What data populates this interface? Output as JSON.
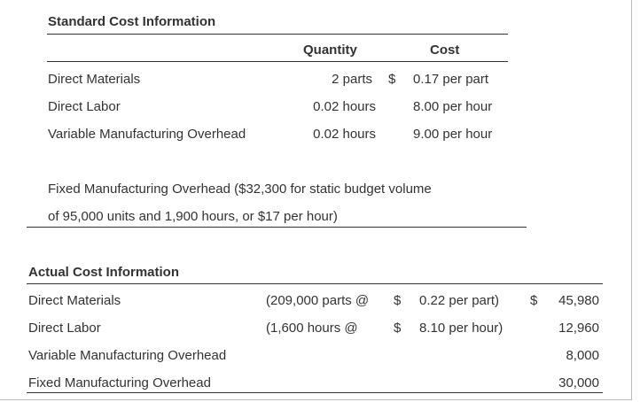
{
  "standard": {
    "title": "Standard Cost Information",
    "col_quantity": "Quantity",
    "col_cost": "Cost",
    "rows": [
      {
        "label": "Direct Materials",
        "quantity": "2 parts",
        "dollar": "$",
        "cost": "0.17 per part"
      },
      {
        "label": "Direct Labor",
        "quantity": "0.02 hours",
        "dollar": "",
        "cost": "8.00 per hour"
      },
      {
        "label": "Variable Manufacturing Overhead",
        "quantity": "0.02 hours",
        "dollar": "",
        "cost": "9.00 per hour"
      }
    ],
    "fixed_line1": "Fixed Manufacturing Overhead ($32,300 for static budget volume",
    "fixed_line2": "of 95,000 units and 1,900 hours, or $17 per hour)"
  },
  "actual": {
    "title": "Actual Cost Information",
    "rows": [
      {
        "label": "Direct Materials",
        "qty": "(209,000 parts @",
        "dollar": "$",
        "rate": "0.22 per part)",
        "total_dollar": "$",
        "total": "45,980"
      },
      {
        "label": "Direct Labor",
        "qty": "(1,600 hours @",
        "dollar": "$",
        "rate": "8.10 per hour)",
        "total_dollar": "",
        "total": "12,960"
      },
      {
        "label": "Variable Manufacturing Overhead",
        "qty": "",
        "dollar": "",
        "rate": "",
        "total_dollar": "",
        "total": "8,000"
      },
      {
        "label": "Fixed Manufacturing Overhead",
        "qty": "",
        "dollar": "",
        "rate": "",
        "total_dollar": "",
        "total": "30,000"
      }
    ]
  }
}
